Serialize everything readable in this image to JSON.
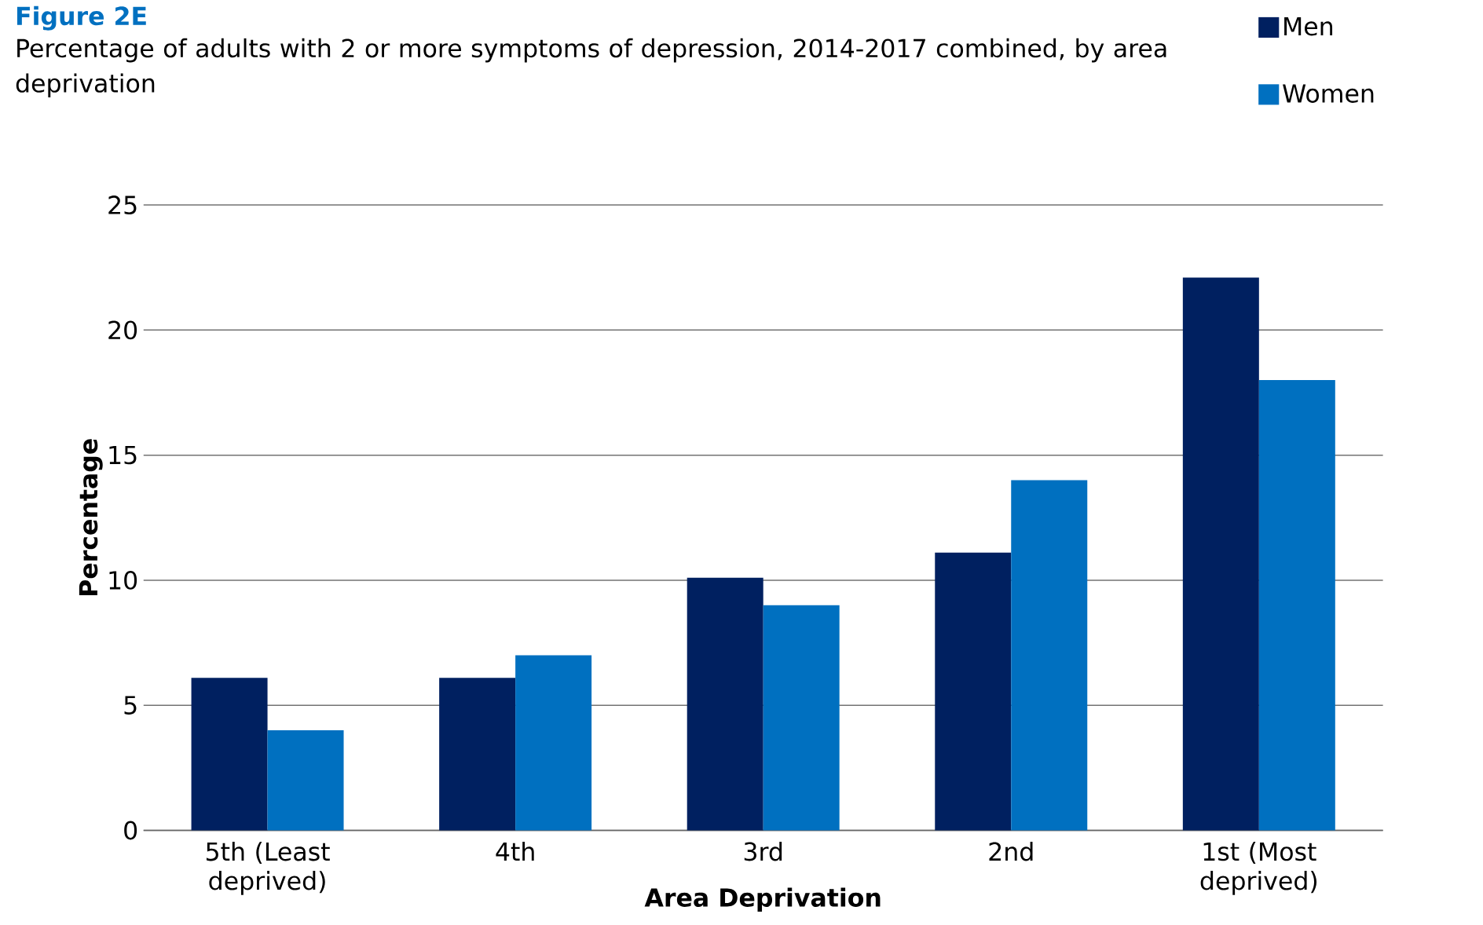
{
  "chart_data": {
    "type": "bar",
    "title": "Figure  2E",
    "subtitle": "Percentage of adults with 2 or more symptoms of depression, 2014-2017 combined, by area deprivation",
    "xlabel": "Area Deprivation",
    "ylabel": "Percentage",
    "categories": [
      "5th (Least deprived)",
      "4th",
      "3rd",
      "2nd",
      "1st (Most deprived)"
    ],
    "series": [
      {
        "name": "Men",
        "color": "#002060",
        "values": [
          6.1,
          6.1,
          10.1,
          11.1,
          22.1
        ]
      },
      {
        "name": "Women",
        "color": "#0070c0",
        "values": [
          4,
          7,
          9,
          14,
          18
        ]
      }
    ],
    "ylim": [
      0,
      25
    ],
    "yticks": [
      0,
      5,
      10,
      15,
      20,
      25
    ],
    "grid": "y",
    "legend": "top right"
  }
}
